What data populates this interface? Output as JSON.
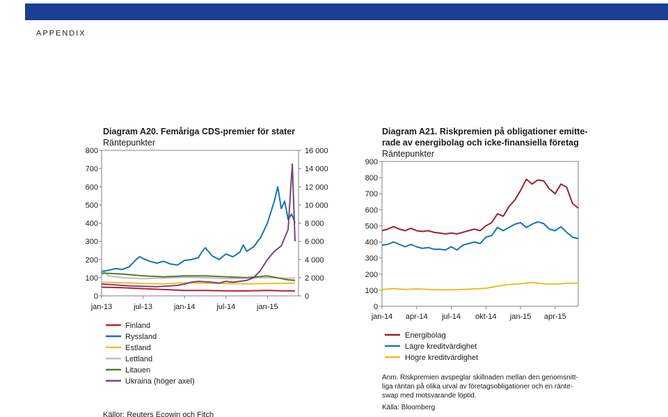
{
  "header": {
    "section": "APPENDIX",
    "bar_color": "#1b3f94"
  },
  "left_chart_texts": {
    "source": "Källor: Reuters Ecowin och Fitch"
  },
  "right_chart_texts": {
    "note": "Anm. Riskpremien avspeglar skillnaden mellan den genomsnitt-liga räntan på olika urval av företagsobligationer och en ränte-swap med motsvarande löptid.",
    "source": "Källa: Bloomberg"
  },
  "chart_data": [
    {
      "type": "line",
      "title": "Diagram A20. Femåriga CDS-premier för stater",
      "subtitle": "Räntepunkter",
      "x_tick_labels": [
        "jan-13",
        "jul-13",
        "jan-14",
        "jul-14",
        "jan-15"
      ],
      "x_tick_positions": [
        0,
        6,
        12,
        18,
        24
      ],
      "x_range": [
        0,
        28.5
      ],
      "y_left_range": [
        0,
        800
      ],
      "y_left_ticks": [
        "0",
        "100",
        "200",
        "300",
        "400",
        "500",
        "600",
        "700",
        "800"
      ],
      "y_right_range": [
        0,
        16000
      ],
      "y_right_ticks": [
        "0",
        "2 000",
        "4 000",
        "6 000",
        "8 000",
        "10 000",
        "12 000",
        "14 000",
        "16 000"
      ],
      "series": [
        {
          "name": "Finland",
          "color": "#b7212f",
          "axis": "left",
          "x": [
            0,
            3,
            6,
            9,
            12,
            15,
            18,
            21,
            24,
            26,
            28
          ],
          "values": [
            48,
            45,
            40,
            35,
            30,
            30,
            28,
            27,
            30,
            28,
            27
          ]
        },
        {
          "name": "Ryssland",
          "color": "#1574b9",
          "axis": "left",
          "x": [
            0,
            1,
            2,
            3,
            4,
            5,
            5.5,
            6,
            7,
            8,
            9,
            10,
            11,
            12,
            13,
            14,
            14.5,
            15,
            16,
            17,
            18,
            19,
            20,
            20.5,
            21,
            22,
            23,
            23.5,
            24,
            25,
            25.5,
            26,
            26.5,
            27,
            27.5,
            28
          ],
          "values": [
            135,
            140,
            150,
            145,
            160,
            200,
            215,
            205,
            190,
            180,
            190,
            175,
            170,
            195,
            200,
            210,
            240,
            265,
            220,
            200,
            230,
            215,
            240,
            280,
            245,
            270,
            320,
            360,
            400,
            520,
            600,
            480,
            520,
            420,
            450,
            400
          ]
        },
        {
          "name": "Estland",
          "color": "#f0bc2a",
          "axis": "left",
          "x": [
            0,
            3,
            6,
            9,
            12,
            15,
            18,
            21,
            24,
            27,
            28
          ],
          "values": [
            75,
            72,
            68,
            66,
            72,
            70,
            68,
            66,
            68,
            70,
            70
          ]
        },
        {
          "name": "Lettland",
          "color": "#bfbfbf",
          "axis": "left",
          "x": [
            0,
            0.5,
            1,
            3,
            6,
            9,
            12,
            15,
            18,
            21,
            24,
            27,
            28
          ],
          "values": [
            115,
            130,
            110,
            100,
            95,
            98,
            102,
            100,
            95,
            98,
            100,
            97,
            98
          ]
        },
        {
          "name": "Litauen",
          "color": "#567a2d",
          "axis": "left",
          "x": [
            0,
            3,
            6,
            9,
            12,
            15,
            18,
            21,
            24,
            27,
            28
          ],
          "values": [
            125,
            120,
            110,
            105,
            110,
            110,
            105,
            100,
            110,
            88,
            85
          ]
        },
        {
          "name": "Ukraina (höger axel)",
          "color": "#74457c",
          "axis": "right",
          "x": [
            0,
            2,
            4,
            6,
            8,
            10,
            11,
            12,
            13,
            14,
            15,
            16,
            17,
            18,
            19,
            20,
            21,
            22,
            23,
            24,
            25,
            26,
            27,
            27.3,
            27.6,
            28
          ],
          "values": [
            1300,
            1200,
            1100,
            1050,
            1000,
            1100,
            1150,
            1300,
            1500,
            1600,
            1550,
            1500,
            1400,
            1600,
            1500,
            1600,
            1700,
            2000,
            2800,
            4000,
            4900,
            5500,
            7300,
            11000,
            14500,
            6000
          ]
        }
      ]
    },
    {
      "type": "line",
      "title": "Diagram A21. Riskpremien på obligationer emitte-rade av energibolag och icke-finansiella företag",
      "subtitle": "Räntepunkter",
      "x_tick_labels": [
        "jan-14",
        "apr-14",
        "jul-14",
        "okt-14",
        "jan-15",
        "apr-15"
      ],
      "x_tick_positions": [
        0,
        3,
        6,
        9,
        12,
        15
      ],
      "x_range": [
        0,
        17
      ],
      "y_range": [
        0,
        900
      ],
      "y_ticks": [
        "0",
        "100",
        "200",
        "300",
        "400",
        "500",
        "600",
        "700",
        "800",
        "900"
      ],
      "series": [
        {
          "name": "Energibolag",
          "color": "#99232d",
          "x": [
            0,
            0.5,
            1,
            1.5,
            2,
            2.5,
            3,
            3.5,
            4,
            4.5,
            5,
            5.5,
            6,
            6.5,
            7,
            7.5,
            8,
            8.5,
            9,
            9.5,
            10,
            10.5,
            11,
            11.5,
            12,
            12.5,
            13,
            13.5,
            14,
            14.5,
            15,
            15.5,
            16,
            16.5,
            17
          ],
          "values": [
            470,
            480,
            495,
            480,
            470,
            485,
            470,
            465,
            470,
            460,
            455,
            450,
            455,
            450,
            460,
            470,
            480,
            470,
            500,
            520,
            575,
            560,
            620,
            660,
            720,
            790,
            760,
            785,
            780,
            730,
            700,
            760,
            740,
            640,
            610
          ]
        },
        {
          "name": "Lägre kreditvärdighet",
          "color": "#1574b9",
          "x": [
            0,
            0.5,
            1,
            1.5,
            2,
            2.5,
            3,
            3.5,
            4,
            4.5,
            5,
            5.5,
            6,
            6.5,
            7,
            7.5,
            8,
            8.5,
            9,
            9.5,
            10,
            10.5,
            11,
            11.5,
            12,
            12.5,
            13,
            13.5,
            14,
            14.5,
            15,
            15.5,
            16,
            16.5,
            17
          ],
          "values": [
            380,
            385,
            400,
            385,
            370,
            385,
            370,
            360,
            365,
            355,
            355,
            350,
            370,
            350,
            380,
            390,
            400,
            390,
            430,
            440,
            490,
            470,
            490,
            510,
            520,
            490,
            510,
            525,
            515,
            480,
            470,
            495,
            460,
            430,
            420
          ]
        },
        {
          "name": "Högre kreditvärdighet",
          "color": "#f0bc2a",
          "x": [
            0,
            1,
            2,
            3,
            4,
            5,
            6,
            7,
            8,
            9,
            10,
            11,
            12,
            13,
            14,
            15,
            16,
            17
          ],
          "values": [
            105,
            110,
            105,
            108,
            105,
            102,
            103,
            105,
            108,
            112,
            125,
            135,
            140,
            148,
            140,
            138,
            143,
            145
          ]
        }
      ]
    }
  ]
}
